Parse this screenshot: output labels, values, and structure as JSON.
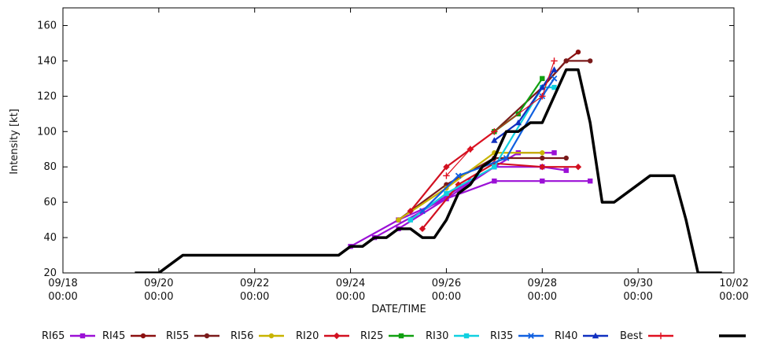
{
  "chart_data": {
    "type": "line",
    "xlabel": "DATE/TIME",
    "ylabel": "Intensity [kt]",
    "xlim": [
      "09/18 00:00",
      "10/02 00:00"
    ],
    "ylim": [
      20,
      170
    ],
    "grid": false,
    "legend_position": "bottom",
    "x_ticks": [
      {
        "date": "09/18",
        "time": "00:00"
      },
      {
        "date": "09/20",
        "time": "00:00"
      },
      {
        "date": "09/22",
        "time": "00:00"
      },
      {
        "date": "09/24",
        "time": "00:00"
      },
      {
        "date": "09/26",
        "time": "00:00"
      },
      {
        "date": "09/28",
        "time": "00:00"
      },
      {
        "date": "09/30",
        "time": "00:00"
      },
      {
        "date": "10/02",
        "time": "00:00"
      }
    ],
    "y_ticks": [
      20,
      40,
      60,
      80,
      100,
      120,
      140,
      160
    ],
    "legend": [
      {
        "label": "RI65",
        "color": "#9b10d6",
        "marker": "square"
      },
      {
        "label": "RI45",
        "color": "#8b1010",
        "marker": "circle"
      },
      {
        "label": "RI55",
        "color": "#7a1a1a",
        "marker": "circle"
      },
      {
        "label": "RI56",
        "color": "#c8b400",
        "marker": "circle"
      },
      {
        "label": "RI20",
        "color": "#d21020",
        "marker": "diamond"
      },
      {
        "label": "RI25",
        "color": "#10a010",
        "marker": "square"
      },
      {
        "label": "RI30",
        "color": "#10d0e0",
        "marker": "square"
      },
      {
        "label": "RI35",
        "color": "#1060e0",
        "marker": "x"
      },
      {
        "label": "RI40",
        "color": "#1030c0",
        "marker": "triangle"
      },
      {
        "label": "Best",
        "color": "#e01020",
        "marker": "plus"
      },
      {
        "label": "",
        "color": "#000000",
        "marker": "none"
      }
    ],
    "best_track": {
      "x": [
        "09/19 12:00",
        "09/20 00:00",
        "09/20 12:00",
        "09/21 00:00",
        "09/21 12:00",
        "09/22 00:00",
        "09/22 12:00",
        "09/23 00:00",
        "09/23 12:00",
        "09/23 18:00",
        "09/24 00:00",
        "09/24 06:00",
        "09/24 12:00",
        "09/24 18:00",
        "09/25 00:00",
        "09/25 06:00",
        "09/25 12:00",
        "09/25 18:00",
        "09/26 00:00",
        "09/26 06:00",
        "09/26 12:00",
        "09/26 18:00",
        "09/27 00:00",
        "09/27 06:00",
        "09/27 12:00",
        "09/27 18:00",
        "09/28 00:00",
        "09/28 06:00",
        "09/28 12:00",
        "09/28 18:00",
        "09/29 00:00",
        "09/29 06:00",
        "09/29 12:00",
        "09/30 00:00",
        "09/30 06:00",
        "09/30 12:00",
        "09/30 18:00",
        "10/01 00:00",
        "10/01 06:00",
        "10/01 12:00",
        "10/01 18:00"
      ],
      "y": [
        20,
        20,
        30,
        30,
        30,
        30,
        30,
        30,
        30,
        30,
        35,
        35,
        40,
        40,
        45,
        45,
        40,
        40,
        50,
        65,
        70,
        80,
        85,
        100,
        100,
        105,
        105,
        120,
        135,
        135,
        105,
        60,
        60,
        70,
        75,
        75,
        75,
        50,
        20,
        20,
        20
      ]
    },
    "forecasts": [
      {
        "name": "RI65",
        "color": "#9b10d6",
        "x": [
          "09/24 00:00",
          "09/25 00:00",
          "09/26 00:00",
          "09/27 00:00",
          "09/28 00:00",
          "09/29 00:00"
        ],
        "y": [
          35,
          50,
          62,
          72,
          72,
          72
        ]
      },
      {
        "name": "RI65",
        "color": "#9b10d6",
        "x": [
          "09/24 12:00",
          "09/25 12:00",
          "09/26 12:00",
          "09/27 12:00",
          "09/28 06:00"
        ],
        "y": [
          40,
          55,
          72,
          88,
          88
        ]
      },
      {
        "name": "RI65",
        "color": "#9b10d6",
        "x": [
          "09/25 00:00",
          "09/26 00:00",
          "09/27 00:00",
          "09/28 00:00",
          "09/28 12:00"
        ],
        "y": [
          45,
          62,
          80,
          80,
          78
        ]
      },
      {
        "name": "RI45",
        "color": "#8b1010",
        "x": [
          "09/28 00:00",
          "09/28 12:00",
          "09/28 18:00"
        ],
        "y": [
          125,
          140,
          145
        ]
      },
      {
        "name": "RI55",
        "color": "#7a1a1a",
        "x": [
          "09/27 00:00",
          "09/28 00:00",
          "09/28 12:00",
          "09/29 00:00"
        ],
        "y": [
          100,
          125,
          140,
          140
        ]
      },
      {
        "name": "RI55",
        "color": "#7a1a1a",
        "x": [
          "09/25 00:00",
          "09/26 00:00",
          "09/27 00:00",
          "09/28 00:00",
          "09/28 12:00"
        ],
        "y": [
          50,
          70,
          85,
          85,
          85
        ]
      },
      {
        "name": "RI56",
        "color": "#c8b400",
        "x": [
          "09/25 00:00",
          "09/26 00:00",
          "09/27 00:00",
          "09/28 00:00"
        ],
        "y": [
          50,
          68,
          88,
          88
        ]
      },
      {
        "name": "RI20",
        "color": "#d21020",
        "x": [
          "09/25 06:00",
          "09/26 00:00",
          "09/26 12:00",
          "09/27 00:00"
        ],
        "y": [
          55,
          80,
          90,
          100
        ]
      },
      {
        "name": "RI20",
        "color": "#d21020",
        "x": [
          "09/25 12:00",
          "09/26 06:00",
          "09/27 00:00",
          "09/28 00:00",
          "09/28 18:00"
        ],
        "y": [
          45,
          70,
          82,
          80,
          80
        ]
      },
      {
        "name": "RI25",
        "color": "#10a010",
        "x": [
          "09/27 00:00",
          "09/27 12:00",
          "09/28 00:00"
        ],
        "y": [
          100,
          110,
          130
        ]
      },
      {
        "name": "RI30",
        "color": "#10d0e0",
        "x": [
          "09/25 06:00",
          "09/26 00:00",
          "09/27 00:00",
          "09/28 00:00",
          "09/28 06:00"
        ],
        "y": [
          50,
          65,
          80,
          125,
          125
        ]
      },
      {
        "name": "RI35",
        "color": "#1060e0",
        "x": [
          "09/25 12:00",
          "09/26 06:00",
          "09/27 06:00",
          "09/28 00:00",
          "09/28 06:00"
        ],
        "y": [
          55,
          75,
          85,
          120,
          130
        ]
      },
      {
        "name": "RI40",
        "color": "#1030c0",
        "x": [
          "09/27 00:00",
          "09/27 12:00",
          "09/28 00:00",
          "09/28 06:00"
        ],
        "y": [
          95,
          105,
          125,
          135
        ]
      },
      {
        "name": "Best",
        "color": "#e01020",
        "x": [
          "09/26 00:00",
          "09/26 12:00",
          "09/27 00:00",
          "09/28 00:00",
          "09/28 06:00"
        ],
        "y": [
          75,
          90,
          100,
          120,
          140
        ]
      }
    ]
  }
}
